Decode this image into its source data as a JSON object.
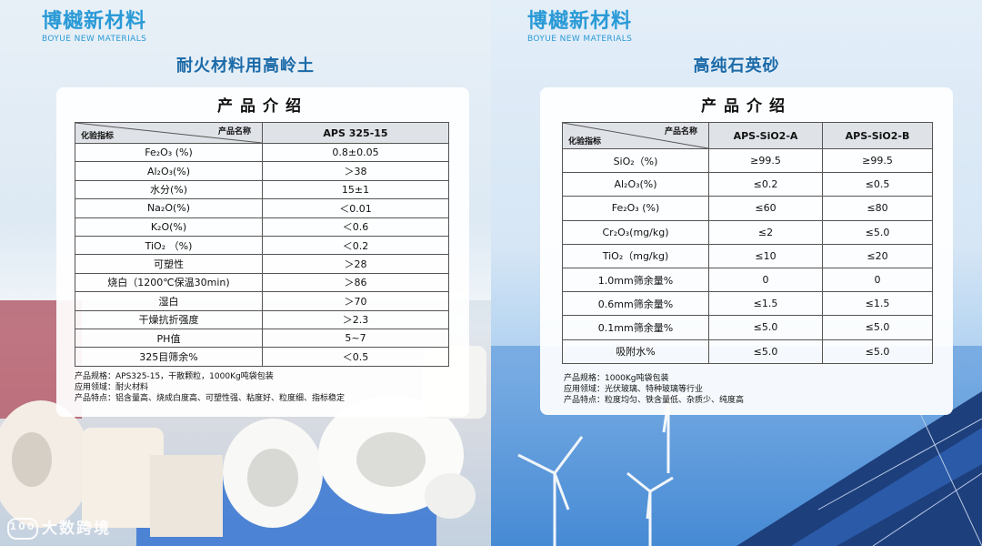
{
  "brand": {
    "cn": "博樾新材料",
    "en": "BOYUE NEW MATERIALS"
  },
  "watermark": {
    "text": "大数跨境",
    "icon_label": "100"
  },
  "left": {
    "product_title": "耐火材料用高岭土",
    "card_title": "产品介绍",
    "header": {
      "corner_top": "产品名称",
      "corner_bottom": "化验指标",
      "columns": [
        "APS 325-15"
      ]
    },
    "rows": [
      {
        "label": "Fe₂O₃ (%)",
        "values": [
          "0.8±0.05"
        ]
      },
      {
        "label": "Al₂O₃(%)",
        "values": [
          "＞38"
        ]
      },
      {
        "label": "水分(%)",
        "values": [
          "15±1"
        ]
      },
      {
        "label": "Na₂O(%)",
        "values": [
          "＜0.01"
        ]
      },
      {
        "label": "K₂O(%)",
        "values": [
          "＜0.6"
        ]
      },
      {
        "label": "TiO₂ （%)",
        "values": [
          "＜0.2"
        ]
      },
      {
        "label": "可塑性",
        "values": [
          "＞28"
        ]
      },
      {
        "label": "烧白（1200℃保温30min)",
        "values": [
          "＞86"
        ]
      },
      {
        "label": "湿白",
        "values": [
          "＞70"
        ]
      },
      {
        "label": "干燥抗折强度",
        "values": [
          "＞2.3"
        ]
      },
      {
        "label": "PH值",
        "values": [
          "5~7"
        ]
      },
      {
        "label": "325目筛余%",
        "values": [
          "＜0.5"
        ]
      }
    ],
    "notes": [
      "产品规格：APS325-15，干散颗粒，1000Kg吨袋包装",
      "应用领域：耐火材料",
      "产品特点：铝含量高、烧成白度高、可塑性强、粘度好、粒度细、指标稳定"
    ]
  },
  "right": {
    "product_title": "高纯石英砂",
    "card_title": "产品介绍",
    "header": {
      "corner_top": "产品名称",
      "corner_bottom": "化验指标",
      "columns": [
        "APS-SiO2-A",
        "APS-SiO2-B"
      ]
    },
    "rows": [
      {
        "label": "SiO₂（%)",
        "values": [
          "≥99.5",
          "≥99.5"
        ]
      },
      {
        "label": "Al₂O₃(%)",
        "values": [
          "≤0.2",
          "≤0.5"
        ]
      },
      {
        "label": "Fe₂O₃ (%)",
        "values": [
          "≤60",
          "≤80"
        ]
      },
      {
        "label": "Cr₂O₃(mg/kg)",
        "values": [
          "≤2",
          "≤5.0"
        ]
      },
      {
        "label": "TiO₂（mg/kg)",
        "values": [
          "≤10",
          "≤20"
        ]
      },
      {
        "label": "1.0mm筛余量%",
        "values": [
          "0",
          "0"
        ]
      },
      {
        "label": "0.6mm筛余量%",
        "values": [
          "≤1.5",
          "≤1.5"
        ]
      },
      {
        "label": "0.1mm筛余量%",
        "values": [
          "≤5.0",
          "≤5.0"
        ]
      },
      {
        "label": "吸附水%",
        "values": [
          "≤5.0",
          "≤5.0"
        ]
      }
    ],
    "notes": [
      "产品规格：1000Kg吨袋包装",
      "应用领域：光伏玻璃、特种玻璃等行业",
      "产品特点：粒度均匀、铁含量低、杂质少、纯度高"
    ]
  }
}
